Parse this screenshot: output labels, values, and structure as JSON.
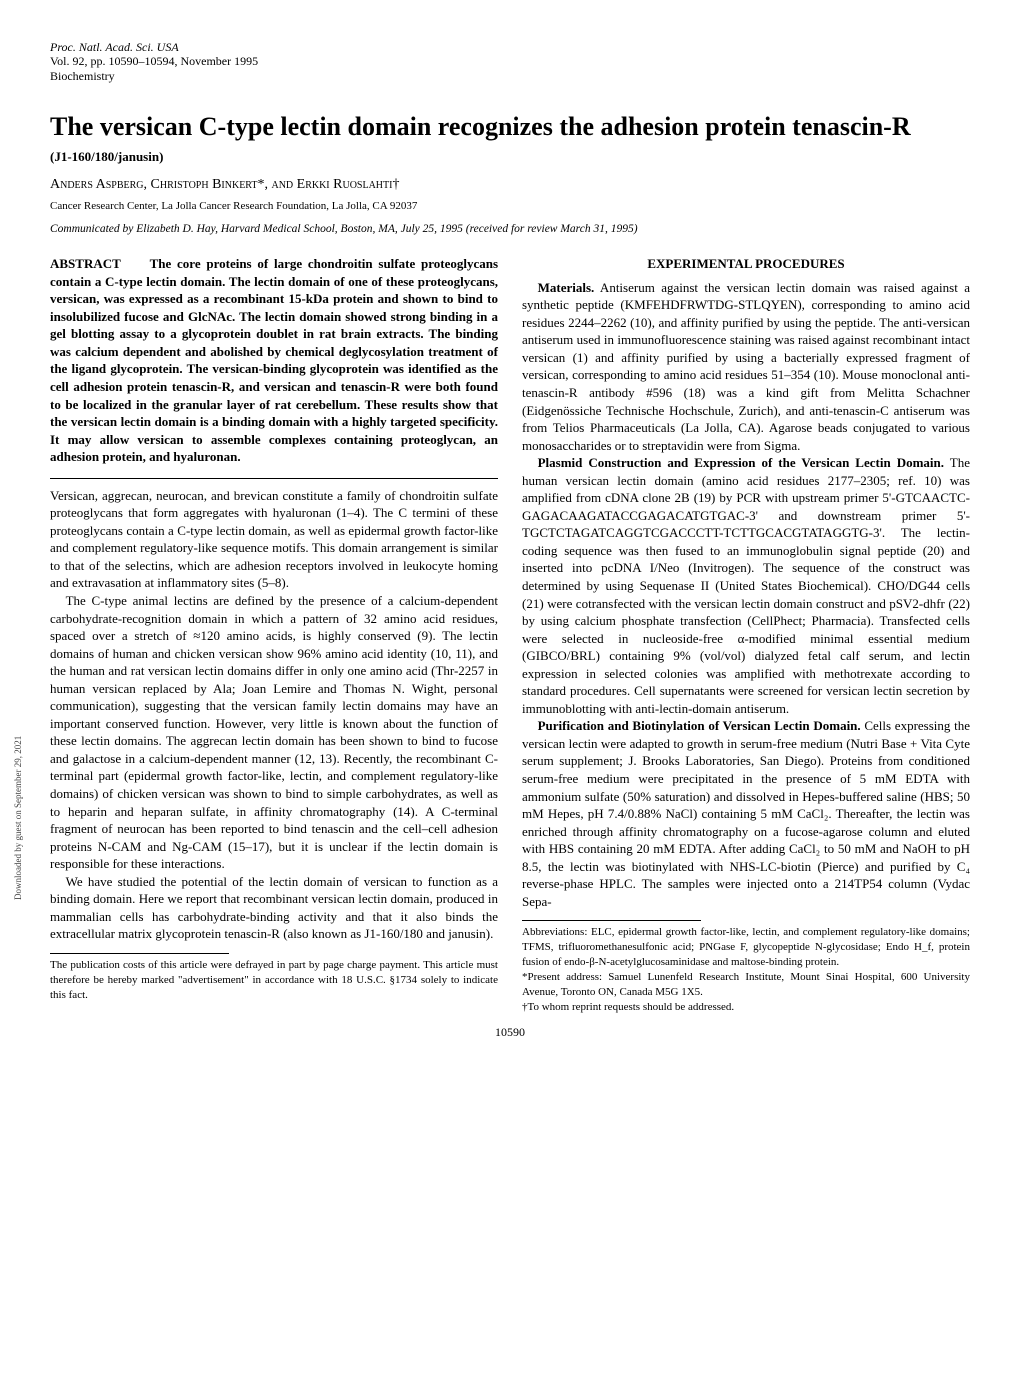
{
  "journal": {
    "name": "Proc. Natl. Acad. Sci. USA",
    "vol_line": "Vol. 92, pp. 10590–10594, November 1995",
    "field": "Biochemistry"
  },
  "title": "The versican C-type lectin domain recognizes the adhesion protein tenascin-R",
  "subtitle": "(J1-160/180/janusin)",
  "authors": "Anders Aspberg, Christoph Binkert*, and Erkki Ruoslahti†",
  "affiliation": "Cancer Research Center, La Jolla Cancer Research Foundation, La Jolla, CA 92037",
  "communicated": "Communicated by Elizabeth D. Hay, Harvard Medical School, Boston, MA, July 25, 1995 (received for review March 31, 1995)",
  "abstract": {
    "label": "ABSTRACT",
    "text": "The core proteins of large chondroitin sulfate proteoglycans contain a C-type lectin domain. The lectin domain of one of these proteoglycans, versican, was expressed as a recombinant 15-kDa protein and shown to bind to insolubilized fucose and GlcNAc. The lectin domain showed strong binding in a gel blotting assay to a glycoprotein doublet in rat brain extracts. The binding was calcium dependent and abolished by chemical deglycosylation treatment of the ligand glycoprotein. The versican-binding glycoprotein was identified as the cell adhesion protein tenascin-R, and versican and tenascin-R were both found to be localized in the granular layer of rat cerebellum. These results show that the versican lectin domain is a binding domain with a highly targeted specificity. It may allow versican to assemble complexes containing proteoglycan, an adhesion protein, and hyaluronan."
  },
  "intro": {
    "p1": "Versican, aggrecan, neurocan, and brevican constitute a family of chondroitin sulfate proteoglycans that form aggregates with hyaluronan (1–4). The C termini of these proteoglycans contain a C-type lectin domain, as well as epidermal growth factor-like and complement regulatory-like sequence motifs. This domain arrangement is similar to that of the selectins, which are adhesion receptors involved in leukocyte homing and extravasation at inflammatory sites (5–8).",
    "p2": "The C-type animal lectins are defined by the presence of a calcium-dependent carbohydrate-recognition domain in which a pattern of 32 amino acid residues, spaced over a stretch of ≈120 amino acids, is highly conserved (9). The lectin domains of human and chicken versican show 96% amino acid identity (10, 11), and the human and rat versican lectin domains differ in only one amino acid (Thr-2257 in human versican replaced by Ala; Joan Lemire and Thomas N. Wight, personal communication), suggesting that the versican family lectin domains may have an important conserved function. However, very little is known about the function of these lectin domains. The aggrecan lectin domain has been shown to bind to fucose and galactose in a calcium-dependent manner (12, 13). Recently, the recombinant C-terminal part (epidermal growth factor-like, lectin, and complement regulatory-like domains) of chicken versican was shown to bind to simple carbohydrates, as well as to heparin and heparan sulfate, in affinity chromatography (14). A C-terminal fragment of neurocan has been reported to bind tenascin and the cell–cell adhesion proteins N-CAM and Ng-CAM (15–17), but it is unclear if the lectin domain is responsible for these interactions.",
    "p3": "We have studied the potential of the lectin domain of versican to function as a binding domain. Here we report that recombinant versican lectin domain, produced in mammalian cells has carbohydrate-binding activity and that it also binds the extracellular matrix glycoprotein tenascin-R (also known as J1-160/180 and janusin)."
  },
  "footnote_pub": "The publication costs of this article were defrayed in part by page charge payment. This article must therefore be hereby marked \"advertisement\" in accordance with 18 U.S.C. §1734 solely to indicate this fact.",
  "methods": {
    "heading": "EXPERIMENTAL PROCEDURES",
    "p1_runin": "Materials.",
    "p1": " Antiserum against the versican lectin domain was raised against a synthetic peptide (KMFEHDFRWTDG-STLQYEN), corresponding to amino acid residues 2244–2262 (10), and affinity purified by using the peptide. The anti-versican antiserum used in immunofluorescence staining was raised against recombinant intact versican (1) and affinity purified by using a bacterially expressed fragment of versican, corresponding to amino acid residues 51–354 (10). Mouse monoclonal anti-tenascin-R antibody #596 (18) was a kind gift from Melitta Schachner (Eidgenössiche Technische Hochschule, Zurich), and anti-tenascin-C antiserum was from Telios Pharmaceuticals (La Jolla, CA). Agarose beads conjugated to various monosaccharides or to streptavidin were from Sigma.",
    "p2_runin": "Plasmid Construction and Expression of the Versican Lectin Domain.",
    "p2": " The human versican lectin domain (amino acid residues 2177–2305; ref. 10) was amplified from cDNA clone 2B (19) by PCR with upstream primer 5'-GTCAACTC-GAGACAAGATACCGAGACATGTGAC-3' and downstream primer 5'-TGCTCTAGATCAGGTCGACCCTT-TCTTGCACGTATAGGTG-3'. The lectin-coding sequence was then fused to an immunoglobulin signal peptide (20) and inserted into pcDNA I/Neo (Invitrogen). The sequence of the construct was determined by using Sequenase II (United States Biochemical). CHO/DG44 cells (21) were cotransfected with the versican lectin domain construct and pSV2-dhfr (22) by using calcium phosphate transfection (CellPhect; Pharmacia). Transfected cells were selected in nucleoside-free α-modified minimal essential medium (GIBCO/BRL) containing 9% (vol/vol) dialyzed fetal calf serum, and lectin expression in selected colonies was amplified with methotrexate according to standard procedures. Cell supernatants were screened for versican lectin secretion by immunoblotting with anti-lectin-domain antiserum.",
    "p3_runin": "Purification and Biotinylation of Versican Lectin Domain.",
    "p3": " Cells expressing the versican lectin were adapted to growth in serum-free medium (Nutri Base + Vita Cyte serum supplement; J. Brooks Laboratories, San Diego). Proteins from conditioned serum-free medium were precipitated in the presence of 5 mM EDTA with ammonium sulfate (50% saturation) and dissolved in Hepes-buffered saline (HBS; 50 mM Hepes, pH 7.4/0.88% NaCl) containing 5 mM CaCl₂. Thereafter, the lectin was enriched through affinity chromatography on a fucose-agarose column and eluted with HBS containing 20 mM EDTA. After adding CaCl₂ to 50 mM and NaOH to pH 8.5, the lectin was biotinylated with NHS-LC-biotin (Pierce) and purified by C₄ reverse-phase HPLC. The samples were injected onto a 214TP54 column (Vydac Sepa-"
  },
  "right_footnotes": {
    "abbr": "Abbreviations: ELC, epidermal growth factor-like, lectin, and complement regulatory-like domains; TFMS, trifluoromethanesulfonic acid; PNGase F, glycopeptide N-glycosidase; Endo H_f, protein fusion of endo-β-N-acetylglucosaminidase and maltose-binding protein.",
    "star": "*Present address: Samuel Lunenfeld Research Institute, Mount Sinai Hospital, 600 University Avenue, Toronto ON, Canada M5G 1X5.",
    "dagger": "†To whom reprint requests should be addressed."
  },
  "page_number": "10590",
  "side_text": "Downloaded by guest on September 29, 2021"
}
